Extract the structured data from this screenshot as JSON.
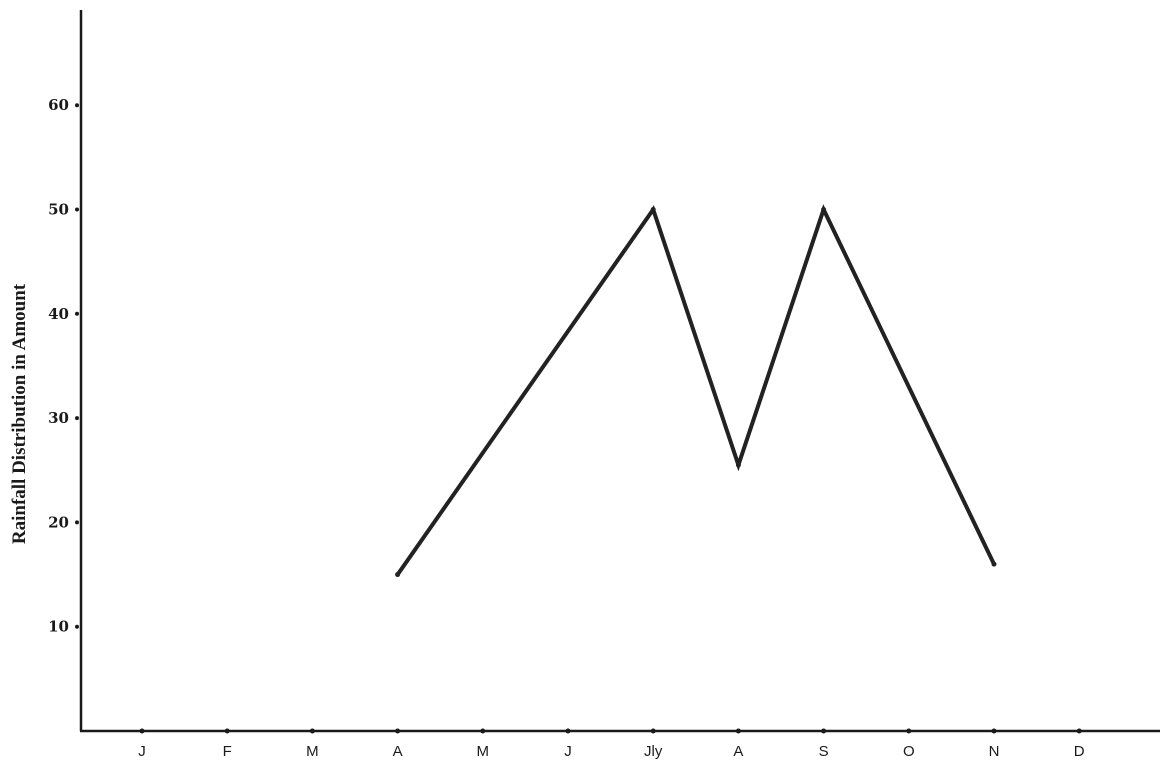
{
  "chart_data": {
    "type": "line",
    "title": "",
    "xlabel": "",
    "ylabel": "Rainfall Distribution in Amount",
    "categories": [
      "J",
      "F",
      "M",
      "A",
      "M",
      "J",
      "Jly",
      "A",
      "S",
      "O",
      "N",
      "D"
    ],
    "y_ticks": [
      10,
      20,
      30,
      40,
      50,
      60
    ],
    "ylim": [
      0,
      66
    ],
    "grid": false,
    "legend": "none",
    "line_color": "#222222",
    "series": [
      {
        "points": [
          {
            "category_index": 3,
            "label": "A",
            "value": 15
          },
          {
            "category_index": 6,
            "label": "Jly",
            "value": 50
          },
          {
            "category_index": 7,
            "label": "A",
            "value": 25.5
          },
          {
            "category_index": 8,
            "label": "S",
            "value": 50
          },
          {
            "category_index": 10,
            "label": "N",
            "value": 16
          }
        ]
      }
    ]
  }
}
